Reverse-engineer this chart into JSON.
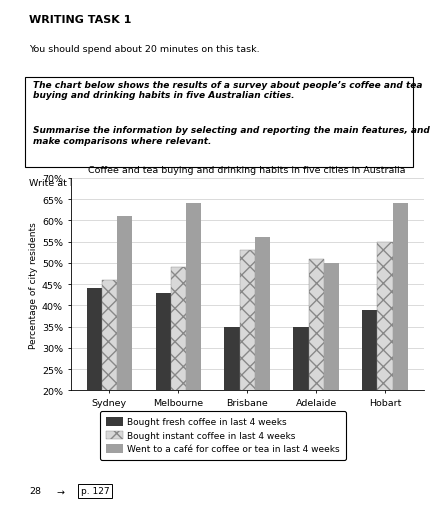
{
  "title": "Coffee and tea buying and drinking habits in five cities in Australia",
  "ylabel": "Percentage of city residents",
  "cities": [
    "Sydney",
    "Melbourne",
    "Brisbane",
    "Adelaide",
    "Hobart"
  ],
  "fresh_coffee": [
    44,
    43,
    35,
    35,
    39
  ],
  "instant_coffee": [
    46,
    49,
    53,
    51,
    55
  ],
  "cafe": [
    61,
    64,
    56,
    50,
    64
  ],
  "ylim": [
    20,
    70
  ],
  "yticks": [
    20,
    25,
    30,
    35,
    40,
    45,
    50,
    55,
    60,
    65,
    70
  ],
  "bar_width": 0.22,
  "color_fresh": "#3a3a3a",
  "color_instant_face": "#d8d8d8",
  "color_cafe": "#a0a0a0",
  "legend_labels": [
    "Bought fresh coffee in last 4 weeks",
    "Bought instant coffee in last 4 weeks",
    "Went to a café for coffee or tea in last 4 weeks"
  ],
  "header_title": "WRITING TASK 1",
  "header_line1": "You should spend about 20 minutes on this task.",
  "box_text1": "The chart below shows the results of a survey about people’s coffee and tea buying and drinking habits in five Australian cities.",
  "box_text2": "Summarise the information by selecting and reporting the main features, and make comparisons where relevant.",
  "write_line": "Write at least 150 words.",
  "footer_num": "28",
  "footer_arrow": "→",
  "footer_page": "p. 127"
}
